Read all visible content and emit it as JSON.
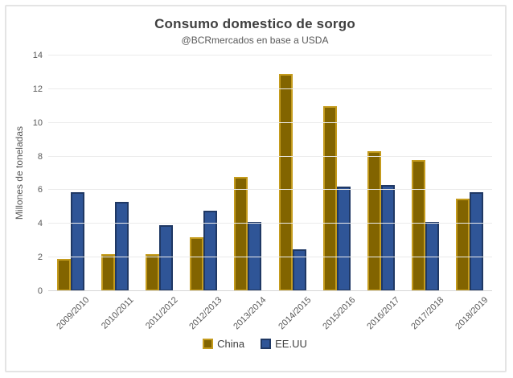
{
  "chart": {
    "title": "Consumo domestico de sorgo",
    "subtitle": "@BCRmercados en base a USDA",
    "ylabel": "Millones de toneladas"
  },
  "chart_data": {
    "type": "bar",
    "title": "Consumo domestico de sorgo",
    "subtitle": "@BCRmercados en base a USDA",
    "xlabel": "",
    "ylabel": "Millones de toneladas",
    "categories": [
      "2009/2010",
      "2010/2011",
      "2011/2012",
      "2012/2013",
      "2013/2014",
      "2014/2015",
      "2015/2016",
      "2016/2017",
      "2017/2018",
      "2018/2019"
    ],
    "series": [
      {
        "name": "China",
        "fill_color": "#826400",
        "border_color": "#C49B1D",
        "values": [
          1.9,
          2.2,
          2.2,
          3.2,
          6.8,
          12.9,
          11.0,
          8.3,
          7.8,
          5.5
        ]
      },
      {
        "name": "EE.UU",
        "fill_color": "#2F5597",
        "border_color": "#1F3864",
        "values": [
          5.9,
          5.3,
          3.9,
          4.8,
          4.1,
          2.5,
          6.2,
          6.3,
          4.1,
          5.9
        ]
      }
    ],
    "ylim": [
      0,
      14
    ],
    "yticks": [
      0,
      2,
      4,
      6,
      8,
      10,
      12,
      14
    ],
    "grid": true,
    "legend_position": "bottom"
  }
}
